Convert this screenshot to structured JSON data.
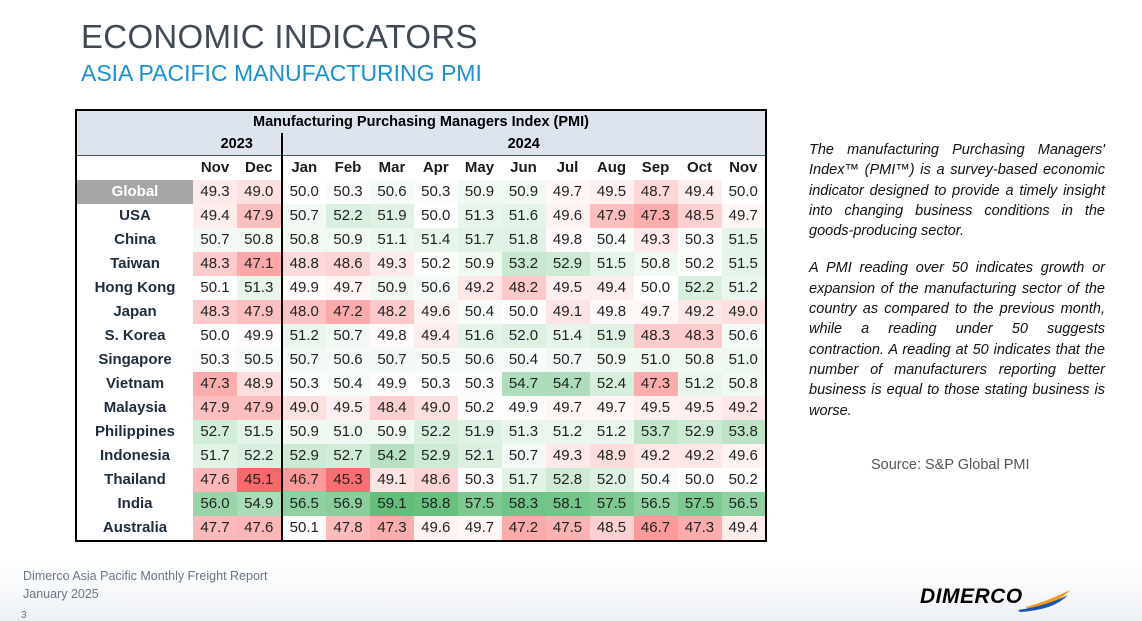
{
  "header": {
    "title": "ECONOMIC INDICATORS",
    "subtitle": "ASIA PACIFIC MANUFACTURING PMI"
  },
  "table": {
    "title": "Manufacturing Purchasing Managers Index (PMI)",
    "years": [
      "2023",
      "2024"
    ],
    "months": [
      "Nov",
      "Dec",
      "Jan",
      "Feb",
      "Mar",
      "Apr",
      "May",
      "Jun",
      "Jul",
      "Aug",
      "Sep",
      "Oct",
      "Nov"
    ],
    "rows": [
      {
        "country": "Global",
        "values": [
          "49.3",
          "49.0",
          "50.0",
          "50.3",
          "50.6",
          "50.3",
          "50.9",
          "50.9",
          "49.7",
          "49.5",
          "48.7",
          "49.4",
          "50.0"
        ]
      },
      {
        "country": "USA",
        "values": [
          "49.4",
          "47.9",
          "50.7",
          "52.2",
          "51.9",
          "50.0",
          "51.3",
          "51.6",
          "49.6",
          "47.9",
          "47.3",
          "48.5",
          "49.7"
        ]
      },
      {
        "country": "China",
        "values": [
          "50.7",
          "50.8",
          "50.8",
          "50.9",
          "51.1",
          "51.4",
          "51.7",
          "51.8",
          "49.8",
          "50.4",
          "49.3",
          "50.3",
          "51.5"
        ]
      },
      {
        "country": "Taiwan",
        "values": [
          "48.3",
          "47.1",
          "48.8",
          "48.6",
          "49.3",
          "50.2",
          "50.9",
          "53.2",
          "52.9",
          "51.5",
          "50.8",
          "50.2",
          "51.5"
        ]
      },
      {
        "country": "Hong Kong",
        "values": [
          "50.1",
          "51.3",
          "49.9",
          "49.7",
          "50.9",
          "50.6",
          "49.2",
          "48.2",
          "49.5",
          "49.4",
          "50.0",
          "52.2",
          "51.2"
        ]
      },
      {
        "country": "Japan",
        "values": [
          "48.3",
          "47.9",
          "48.0",
          "47.2",
          "48.2",
          "49.6",
          "50.4",
          "50.0",
          "49.1",
          "49.8",
          "49.7",
          "49.2",
          "49.0"
        ]
      },
      {
        "country": "S. Korea",
        "values": [
          "50.0",
          "49.9",
          "51.2",
          "50.7",
          "49.8",
          "49.4",
          "51.6",
          "52.0",
          "51.4",
          "51.9",
          "48.3",
          "48.3",
          "50.6"
        ]
      },
      {
        "country": "Singapore",
        "values": [
          "50.3",
          "50.5",
          "50.7",
          "50.6",
          "50.7",
          "50.5",
          "50.6",
          "50.4",
          "50.7",
          "50.9",
          "51.0",
          "50.8",
          "51.0"
        ]
      },
      {
        "country": "Vietnam",
        "values": [
          "47.3",
          "48.9",
          "50.3",
          "50.4",
          "49.9",
          "50.3",
          "50.3",
          "54.7",
          "54.7",
          "52.4",
          "47.3",
          "51.2",
          "50.8"
        ]
      },
      {
        "country": "Malaysia",
        "values": [
          "47.9",
          "47.9",
          "49.0",
          "49.5",
          "48.4",
          "49.0",
          "50.2",
          "49.9",
          "49.7",
          "49.7",
          "49.5",
          "49.5",
          "49.2"
        ]
      },
      {
        "country": "Philippines",
        "values": [
          "52.7",
          "51.5",
          "50.9",
          "51.0",
          "50.9",
          "52.2",
          "51.9",
          "51.3",
          "51.2",
          "51.2",
          "53.7",
          "52.9",
          "53.8"
        ]
      },
      {
        "country": "Indonesia",
        "values": [
          "51.7",
          "52.2",
          "52.9",
          "52.7",
          "54.2",
          "52.9",
          "52.1",
          "50.7",
          "49.3",
          "48.9",
          "49.2",
          "49.2",
          "49.6"
        ]
      },
      {
        "country": "Thailand",
        "values": [
          "47.6",
          "45.1",
          "46.7",
          "45.3",
          "49.1",
          "48.6",
          "50.3",
          "51.7",
          "52.8",
          "52.0",
          "50.4",
          "50.0",
          "50.2"
        ]
      },
      {
        "country": "India",
        "values": [
          "56.0",
          "54.9",
          "56.5",
          "56.9",
          "59.1",
          "58.8",
          "57.5",
          "58.3",
          "58.1",
          "57.5",
          "56.5",
          "57.5",
          "56.5"
        ]
      },
      {
        "country": "Australia",
        "values": [
          "47.7",
          "47.6",
          "50.1",
          "47.8",
          "47.3",
          "49.6",
          "49.7",
          "47.2",
          "47.5",
          "48.5",
          "46.7",
          "47.3",
          "49.4"
        ]
      }
    ]
  },
  "sidebar": {
    "paragraph1": "The manufacturing Purchasing Managers' Index™ (PMI™) is a survey-based economic indicator designed to provide a timely insight into changing business conditions in the goods-producing sector.",
    "paragraph2": "A PMI reading over 50 indicates growth or expansion of the manufacturing sector of the country as compared to the previous month, while a reading under 50 suggests contraction. A reading at 50 indicates that the number of manufacturers reporting better business is equal to those stating business is worse.",
    "source": "Source: S&P Global PMI"
  },
  "footer": {
    "line1": "Dimerco Asia Pacific Monthly Freight Report",
    "line2": "January 2025",
    "page_number": "3",
    "logo_text": "DIMERCO"
  },
  "colors": {
    "title": "#3f4a56",
    "subtitle": "#1a8fd6",
    "header_bg": "#dde4ee",
    "global_row_bg": "#a6a6a6",
    "high_green": "#63be7b",
    "neutral": "#ffffff",
    "low_red": "#f8696b",
    "logo_blue": "#1a56b0",
    "logo_orange": "#f39a1e"
  }
}
